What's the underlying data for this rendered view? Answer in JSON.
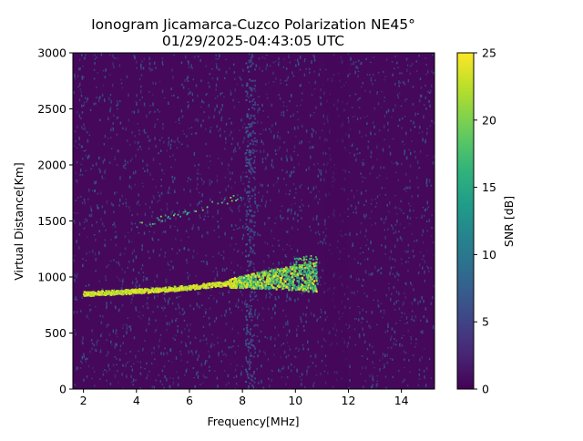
{
  "chart_data": {
    "type": "heatmap",
    "title": "Ionogram Jicamarca-Cuzco Polarization NE45°",
    "subtitle": "01/29/2025-04:43:05 UTC",
    "xlabel": "Frequency[MHz]",
    "ylabel": "Virtual Distance[Km]",
    "xlim": [
      1.6,
      15.25
    ],
    "ylim": [
      0,
      3000
    ],
    "xticks": [
      2,
      4,
      6,
      8,
      10,
      12,
      14
    ],
    "yticks": [
      0,
      500,
      1000,
      1500,
      2000,
      2500,
      3000
    ],
    "colorbar": {
      "label": "SNR [dB]",
      "min": 0,
      "max": 25,
      "ticks": [
        0,
        5,
        10,
        15,
        20,
        25
      ],
      "colormap": "viridis"
    },
    "traces": [
      {
        "mode": "main trace",
        "points": [
          [
            2.0,
            855
          ],
          [
            3.0,
            868
          ],
          [
            4.0,
            880
          ],
          [
            5.0,
            895
          ],
          [
            6.0,
            915
          ],
          [
            7.0,
            940
          ],
          [
            8.0,
            965
          ],
          [
            9.0,
            985
          ],
          [
            10.0,
            1000
          ],
          [
            10.8,
            1010
          ]
        ]
      },
      {
        "mode": "upper weak trace",
        "points": [
          [
            4.0,
            1460
          ],
          [
            5.0,
            1530
          ],
          [
            6.0,
            1600
          ],
          [
            7.0,
            1660
          ],
          [
            8.0,
            1730
          ]
        ]
      }
    ],
    "background_snr_db": 0.5,
    "grid": false
  }
}
